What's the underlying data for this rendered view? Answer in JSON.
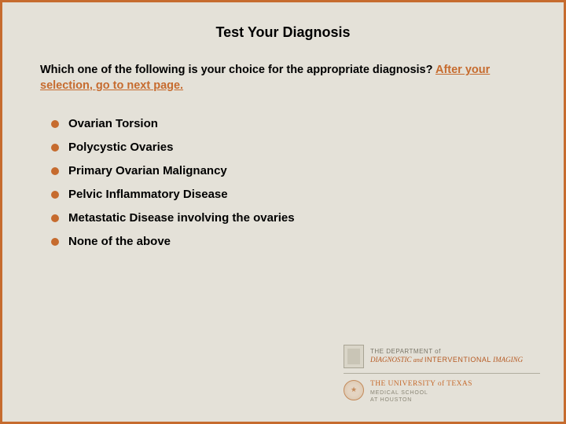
{
  "colors": {
    "background": "#e4e1d8",
    "border": "#c66b2e",
    "bullet": "#c66b2e",
    "text": "#000000",
    "accent": "#c66b2e"
  },
  "title": "Test Your Diagnosis",
  "question_lead": "Which one of the following is your choice for the appropriate diagnosis? ",
  "question_instruction": "After your selection, go to next page.",
  "options": [
    "Ovarian Torsion",
    "Polycystic Ovaries",
    "Primary Ovarian Malignancy",
    "Pelvic Inflammatory Disease",
    "Metastatic Disease involving the ovaries",
    "None of the above"
  ],
  "footer": {
    "dept_line1": "THE DEPARTMENT of",
    "dept_line2a": "DIAGNOSTIC",
    "dept_line2amp": "and",
    "dept_line2b": "INTERVENTIONAL",
    "dept_line2c": "IMAGING",
    "ut_line1": "THE UNIVERSITY of TEXAS",
    "ut_line2": "MEDICAL SCHOOL",
    "ut_line3": "AT HOUSTON"
  }
}
